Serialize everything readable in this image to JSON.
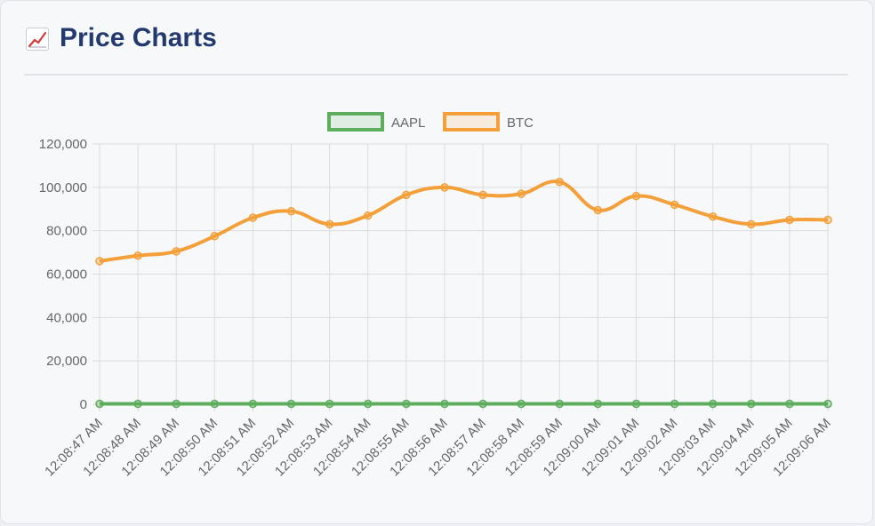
{
  "header": {
    "icon": "chart-increasing-icon",
    "title": "Price Charts"
  },
  "chart_data": {
    "type": "line",
    "title": "",
    "xlabel": "",
    "ylabel": "",
    "categories": [
      "12:08:47 AM",
      "12:08:48 AM",
      "12:08:49 AM",
      "12:08:50 AM",
      "12:08:51 AM",
      "12:08:52 AM",
      "12:08:53 AM",
      "12:08:54 AM",
      "12:08:55 AM",
      "12:08:56 AM",
      "12:08:57 AM",
      "12:08:58 AM",
      "12:08:59 AM",
      "12:09:00 AM",
      "12:09:01 AM",
      "12:09:02 AM",
      "12:09:03 AM",
      "12:09:04 AM",
      "12:09:05 AM",
      "12:09:06 AM"
    ],
    "ylim": [
      0,
      120000
    ],
    "yticks": [
      0,
      20000,
      40000,
      60000,
      80000,
      100000,
      120000
    ],
    "ytick_labels": [
      "0",
      "20,000",
      "40,000",
      "60,000",
      "80,000",
      "100,000",
      "120,000"
    ],
    "grid": true,
    "legend_position": "top-center",
    "series": [
      {
        "name": "AAPL",
        "color": "#5cad5c",
        "values": [
          200,
          200,
          200,
          200,
          200,
          200,
          200,
          200,
          200,
          200,
          200,
          200,
          200,
          200,
          200,
          200,
          200,
          200,
          200,
          200
        ]
      },
      {
        "name": "BTC",
        "color": "#f3a03a",
        "values": [
          66000,
          68500,
          70500,
          77500,
          86000,
          89000,
          83000,
          87000,
          96500,
          100000,
          96500,
          97000,
          102500,
          89500,
          96000,
          92000,
          86500,
          83000,
          85000,
          85000
        ]
      }
    ]
  }
}
